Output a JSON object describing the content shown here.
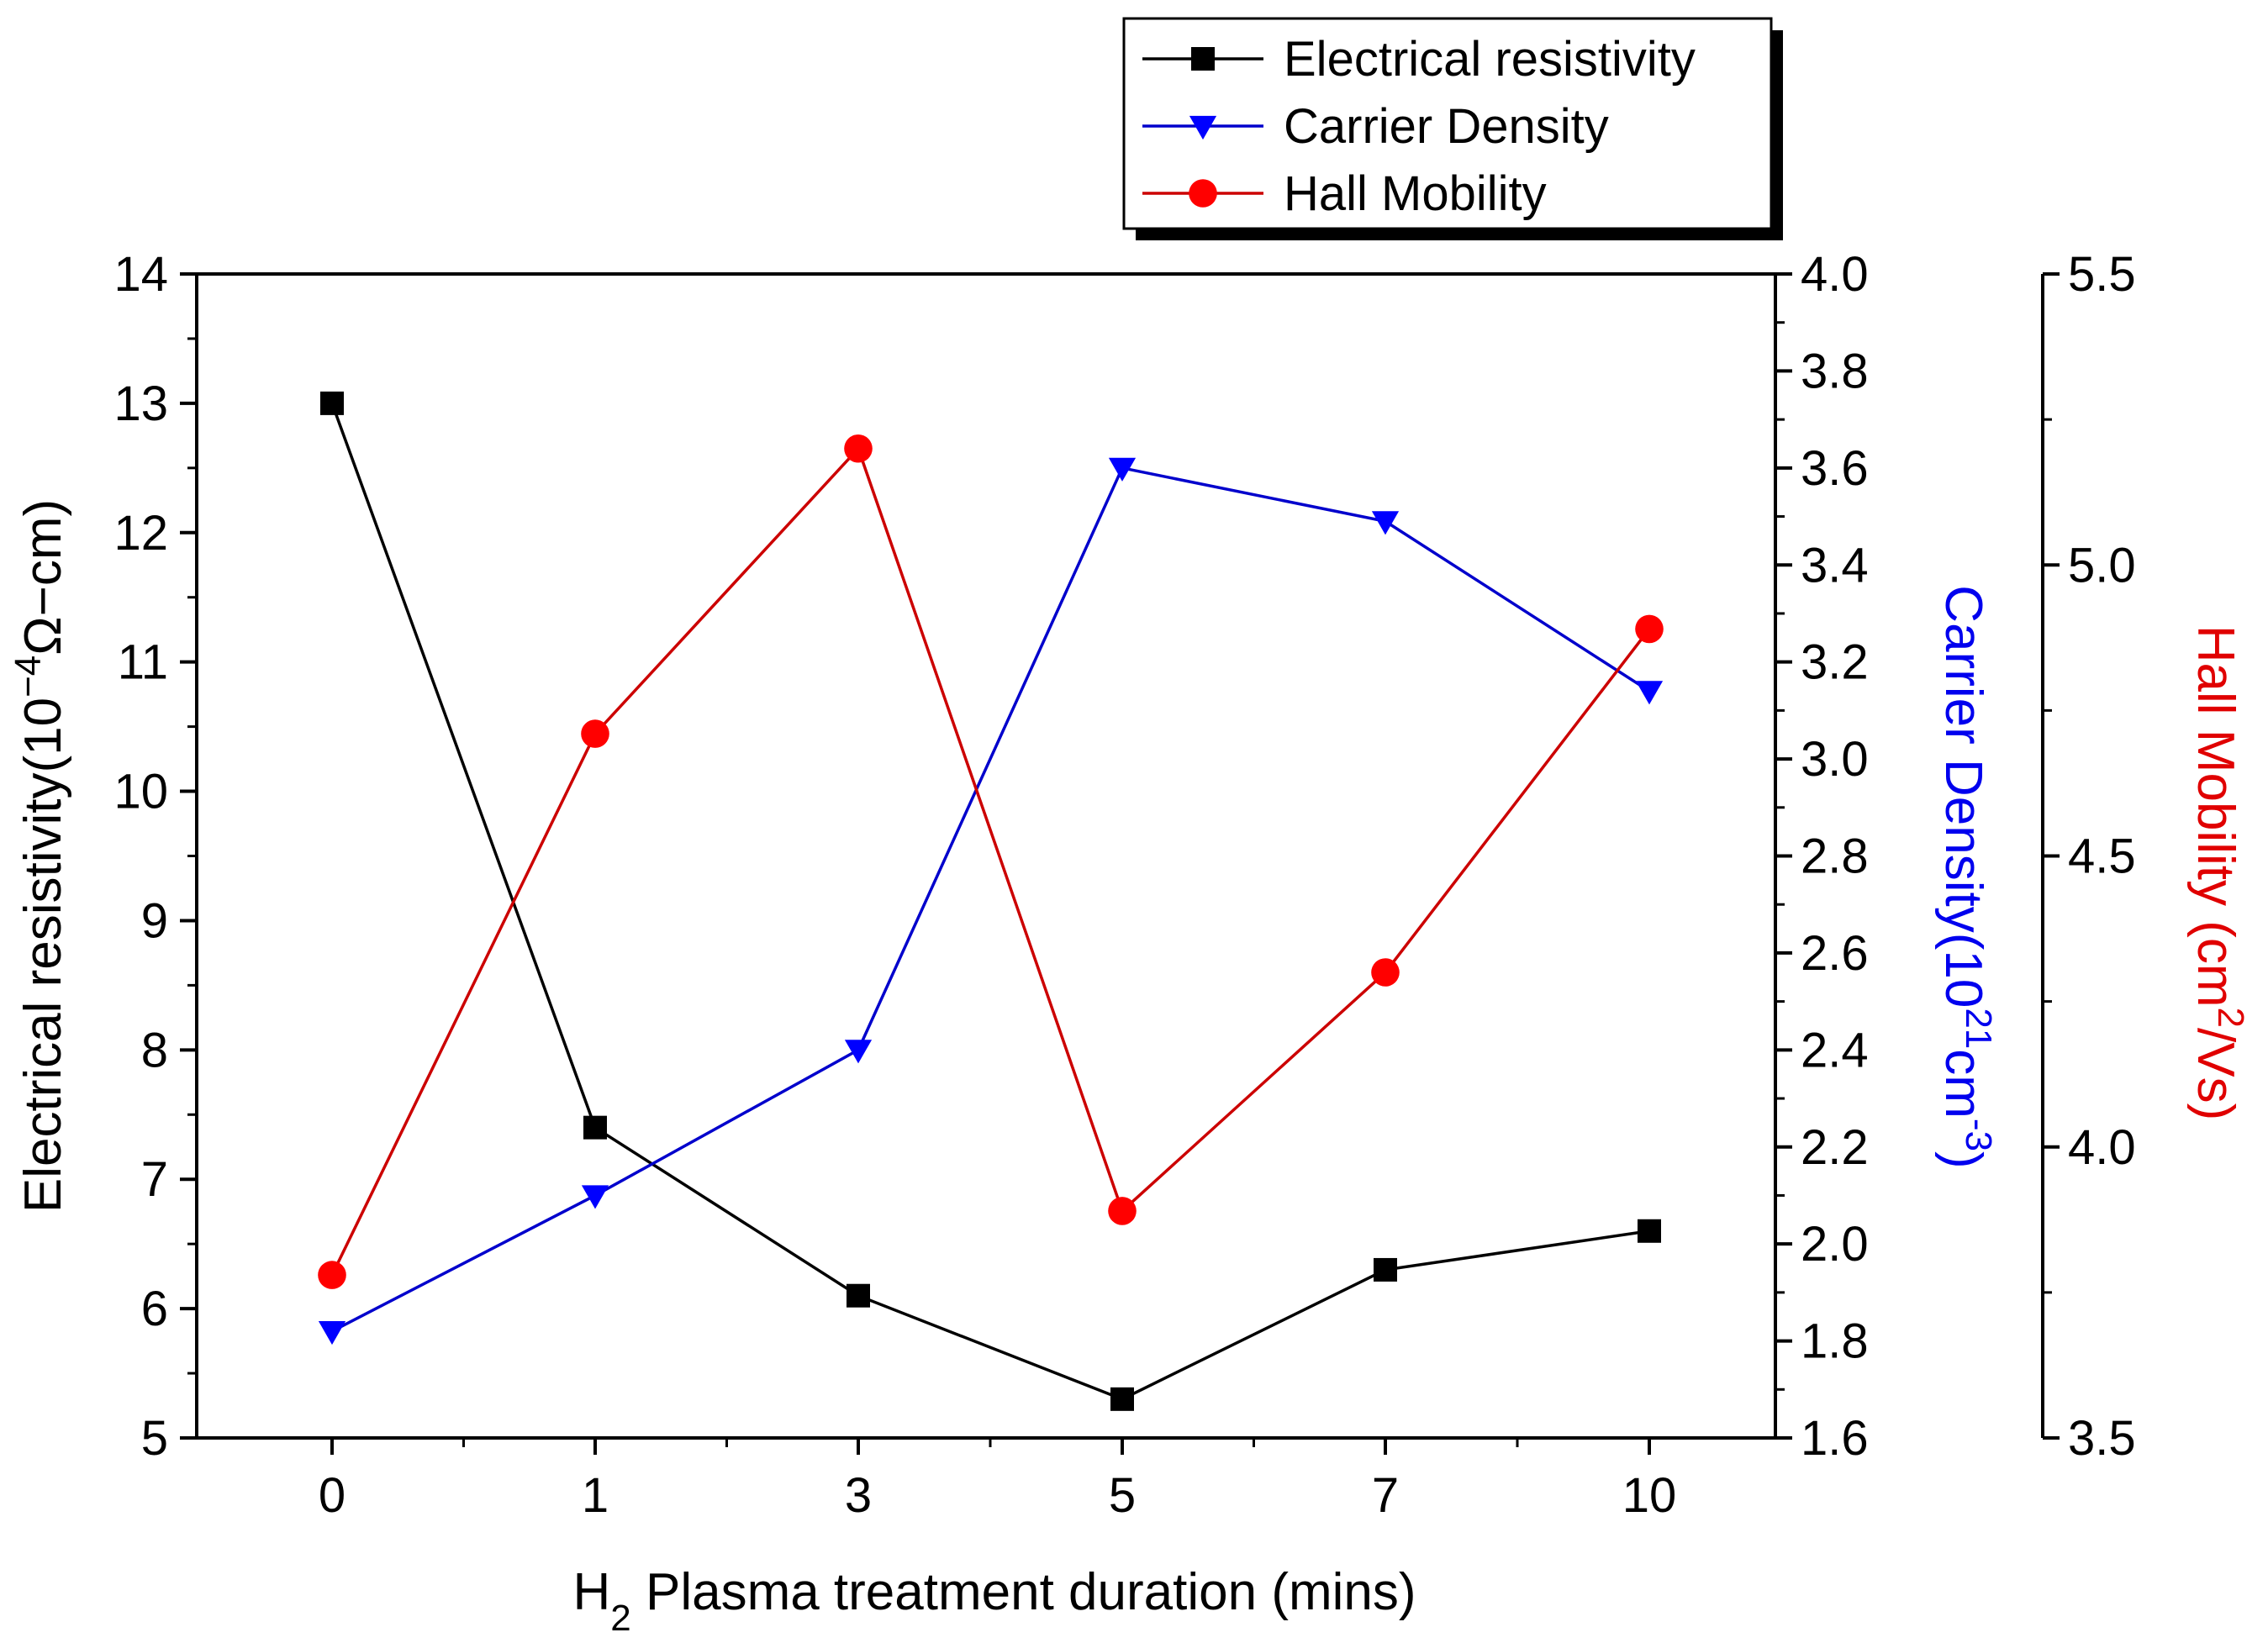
{
  "chart_data": {
    "type": "line",
    "categories": [
      "0",
      "1",
      "3",
      "5",
      "7",
      "10"
    ],
    "xlabel": {
      "prefix": "H",
      "sub": "2",
      "suffix": " Plasma treatment duration (mins)"
    },
    "axes": {
      "left": {
        "label_prefix": "Electrical resistivity(10",
        "label_sup": "−4",
        "label_suffix": "Ω−cm)",
        "range": [
          5,
          14
        ],
        "ticks": [
          "5",
          "6",
          "7",
          "8",
          "9",
          "10",
          "11",
          "12",
          "13",
          "14"
        ],
        "color": "#000000"
      },
      "right1": {
        "label_prefix": "Carrier Density(10",
        "label_sup1": "21",
        "label_mid": "cm",
        "label_sup2": "-3",
        "label_suffix": ")",
        "range": [
          1.6,
          4.0
        ],
        "ticks": [
          "1.6",
          "1.8",
          "2.0",
          "2.2",
          "2.4",
          "2.6",
          "2.8",
          "3.0",
          "3.2",
          "3.4",
          "3.6",
          "3.8",
          "4.0"
        ],
        "color": "#0000ee"
      },
      "right2": {
        "label_prefix": "Hall Mobility (cm",
        "label_sup": "2",
        "label_suffix": "/Vs)",
        "range": [
          3.5,
          5.5
        ],
        "ticks": [
          "3.5",
          "4.0",
          "4.5",
          "5.0",
          "5.5"
        ],
        "color": "#e00000"
      }
    },
    "series": [
      {
        "name": "Electrical resistivity",
        "axis": "left",
        "marker": "square",
        "color": "#000000",
        "marker_color": "#000000",
        "values": [
          13.0,
          7.4,
          6.1,
          5.3,
          6.3,
          6.6
        ]
      },
      {
        "name": "Carrier Density",
        "axis": "right1",
        "marker": "triangle-down",
        "color": "#0000cc",
        "marker_color": "#0000ff",
        "values": [
          1.82,
          2.1,
          2.4,
          3.6,
          3.49,
          3.14
        ]
      },
      {
        "name": "Hall Mobility",
        "axis": "right2",
        "marker": "circle",
        "color": "#cc0000",
        "marker_color": "#ff0000",
        "values": [
          3.78,
          4.71,
          5.2,
          3.89,
          4.3,
          4.89
        ]
      }
    ],
    "legend_position": "top-center",
    "grid": false
  }
}
